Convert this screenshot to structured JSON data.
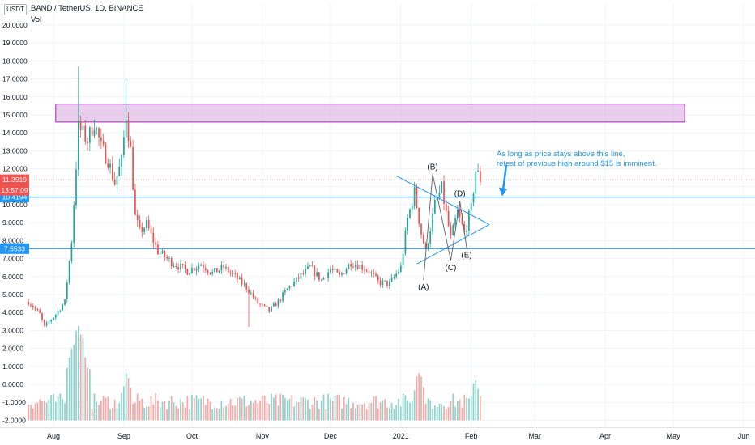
{
  "header": {
    "currency_badge": "USDT",
    "symbol_title": "BAND / TetherUS, 1D, BINANCE",
    "volume_label": "Vol"
  },
  "annotation": {
    "line1": "As long as price stays above this line,",
    "line2": "retest of previous high around $15 is imminent."
  },
  "wave_labels": [
    "(A)",
    "(B)",
    "(C)",
    "(D)",
    "(E)"
  ],
  "colors": {
    "up": "#26a69a",
    "down": "#ef5350",
    "vol_up": "#8fd3cc",
    "vol_down": "#f7a9a7",
    "line": "#2196f3",
    "zone_fill": "#e1bee7",
    "zone_border": "#9c27b0",
    "grid": "#f0f3fa",
    "axis_text": "#131722"
  },
  "chart_data": {
    "type": "candlestick",
    "symbol": "BAND / TetherUS",
    "interval": "1D",
    "exchange": "BINANCE",
    "price_axis": {
      "scale": "linear",
      "ylim": [
        -2.2,
        21.2
      ],
      "tick_labels": [
        "20.0000",
        "19.0000",
        "18.0000",
        "17.0000",
        "16.0000",
        "15.0000",
        "14.0000",
        "13.0000",
        "12.0000",
        "11.0000",
        "10.0000",
        "9.0000",
        "8.0000",
        "7.0000",
        "6.0000",
        "5.0000",
        "4.0000",
        "3.0000",
        "2.0000",
        "1.0000",
        "0.0000",
        "-1.0000",
        "-2.0000"
      ]
    },
    "time_axis": {
      "start": "2020-07-21",
      "end": "2021-06-10",
      "tick_labels": [
        {
          "label": "Aug",
          "date": "2020-08-01"
        },
        {
          "label": "Sep",
          "date": "2020-09-01"
        },
        {
          "label": "Oct",
          "date": "2020-10-01"
        },
        {
          "label": "Nov",
          "date": "2020-11-01"
        },
        {
          "label": "Dec",
          "date": "2020-12-01"
        },
        {
          "label": "2021",
          "date": "2021-01-01"
        },
        {
          "label": "Feb",
          "date": "2021-02-01"
        },
        {
          "label": "Mar",
          "date": "2021-03-01"
        },
        {
          "label": "Apr",
          "date": "2021-04-01"
        },
        {
          "label": "May",
          "date": "2021-05-01"
        },
        {
          "label": "Jun",
          "date": "2021-06-01"
        }
      ]
    },
    "price_path": [
      [
        "2020-07-21",
        4.6
      ],
      [
        "2020-07-26",
        3.9
      ],
      [
        "2020-07-28",
        3.2
      ],
      [
        "2020-08-02",
        3.9
      ],
      [
        "2020-08-06",
        4.6
      ],
      [
        "2020-08-09",
        8.0
      ],
      [
        "2020-08-12",
        14.3
      ],
      [
        "2020-08-16",
        13.6
      ],
      [
        "2020-08-19",
        14.6
      ],
      [
        "2020-08-22",
        13.2
      ],
      [
        "2020-08-25",
        12.5
      ],
      [
        "2020-08-28",
        11.2
      ],
      [
        "2020-08-31",
        12.4
      ],
      [
        "2020-09-02",
        15.0
      ],
      [
        "2020-09-04",
        13.0
      ],
      [
        "2020-09-06",
        9.3
      ],
      [
        "2020-09-08",
        8.5
      ],
      [
        "2020-09-11",
        8.9
      ],
      [
        "2020-09-16",
        7.4
      ],
      [
        "2020-09-22",
        6.8
      ],
      [
        "2020-09-29",
        6.3
      ],
      [
        "2020-10-05",
        6.7
      ],
      [
        "2020-10-10",
        6.2
      ],
      [
        "2020-10-15",
        6.5
      ],
      [
        "2020-10-20",
        6.0
      ],
      [
        "2020-10-25",
        5.4
      ],
      [
        "2020-10-30",
        4.5
      ],
      [
        "2020-11-04",
        4.1
      ],
      [
        "2020-11-08",
        4.6
      ],
      [
        "2020-11-12",
        5.3
      ],
      [
        "2020-11-16",
        5.8
      ],
      [
        "2020-11-22",
        6.5
      ],
      [
        "2020-11-27",
        5.8
      ],
      [
        "2020-12-01",
        6.4
      ],
      [
        "2020-12-05",
        6.0
      ],
      [
        "2020-12-10",
        6.8
      ],
      [
        "2020-12-14",
        6.6
      ],
      [
        "2020-12-18",
        6.3
      ],
      [
        "2020-12-22",
        5.7
      ],
      [
        "2020-12-27",
        5.6
      ],
      [
        "2021-01-01",
        6.5
      ],
      [
        "2021-01-04",
        9.2
      ],
      [
        "2021-01-07",
        10.7
      ],
      [
        "2021-01-10",
        8.4
      ],
      [
        "2021-01-12",
        7.4
      ],
      [
        "2021-01-16",
        10.0
      ],
      [
        "2021-01-19",
        10.9
      ],
      [
        "2021-01-23",
        8.1
      ],
      [
        "2021-01-26",
        9.6
      ],
      [
        "2021-01-29",
        8.4
      ],
      [
        "2021-02-01",
        9.8
      ],
      [
        "2021-02-03",
        11.9
      ],
      [
        "2021-02-05",
        11.4
      ]
    ],
    "extremes": {
      "ath_wick": 17.7,
      "sep_wick": 17.0,
      "oct_low_wick": 3.2
    },
    "horizontal_lines": [
      {
        "price": 10.4194,
        "label": "10.4194"
      },
      {
        "price": 7.5533,
        "label": "7.5533"
      }
    ],
    "last_price": {
      "price": 11.3919,
      "label": "11.3919",
      "countdown": "13:57:09"
    },
    "resistance_zone": {
      "from": 14.6,
      "to": 15.6,
      "start": "2020-08-02",
      "end": "2021-05-06"
    },
    "triangle": {
      "upper_start": [
        "2020-12-30",
        11.6
      ],
      "lower_start": [
        "2021-01-08",
        6.7
      ],
      "apex": [
        "2021-02-09",
        8.9
      ]
    },
    "waves": [
      {
        "label": "(A)",
        "date": "2021-01-11",
        "price": 5.8
      },
      {
        "label": "(B)",
        "date": "2021-01-15",
        "price": 11.7
      },
      {
        "label": "(C)",
        "date": "2021-01-23",
        "price": 6.9
      },
      {
        "label": "(D)",
        "date": "2021-01-27",
        "price": 10.2
      },
      {
        "label": "(E)",
        "date": "2021-01-30",
        "price": 7.6
      }
    ],
    "volume": {
      "note": "volume pane plotted on the same price scale, bars from baseline -2",
      "baseline": -2.0,
      "peaks": [
        {
          "date": "2020-08-12",
          "value": 3.7
        },
        {
          "date": "2020-09-02",
          "value": 1.0
        },
        {
          "date": "2021-01-09",
          "value": 1.0
        },
        {
          "date": "2021-02-03",
          "value": 0.7
        }
      ]
    },
    "arrow": {
      "date": "2021-02-15",
      "from": 12.2,
      "to": 10.6
    }
  }
}
